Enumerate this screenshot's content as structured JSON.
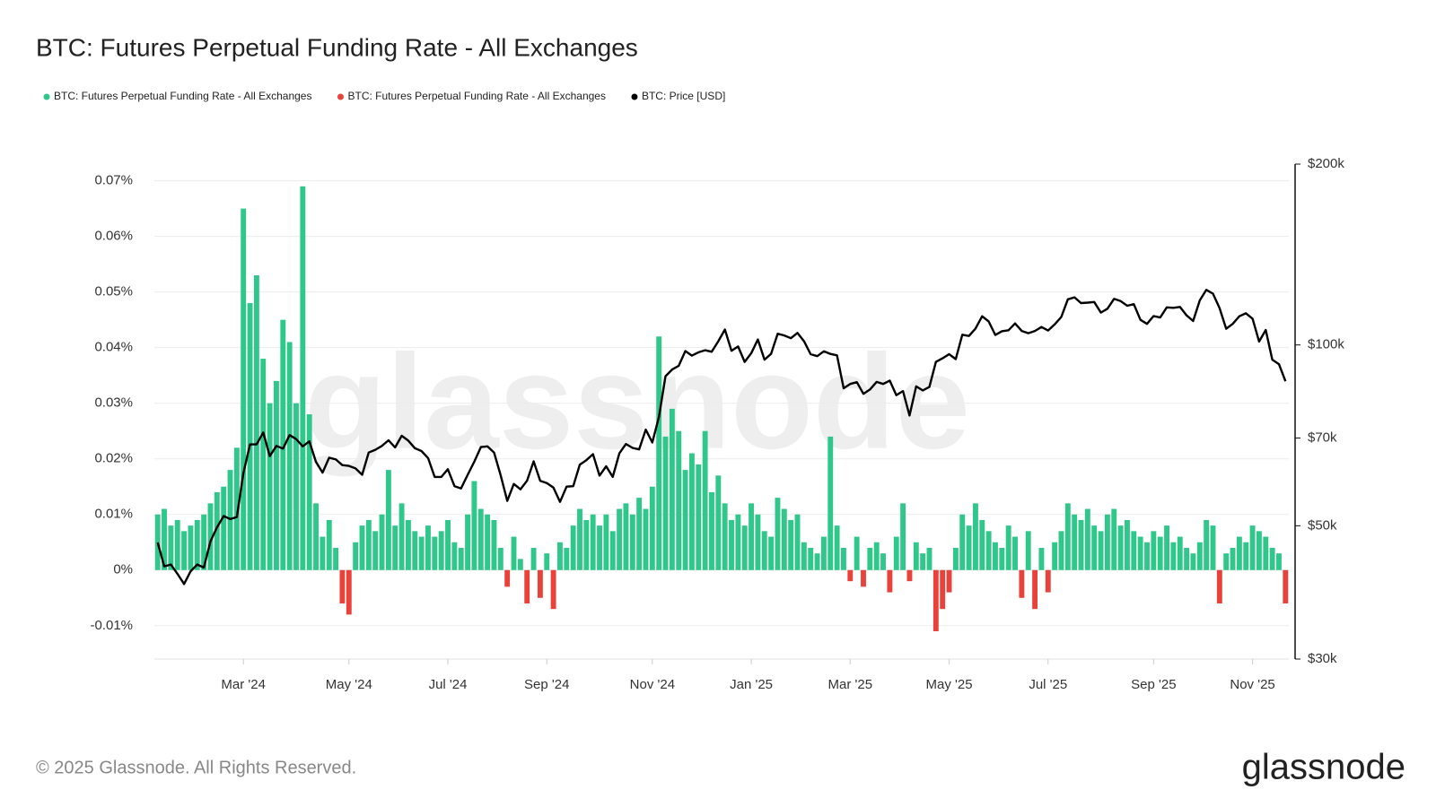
{
  "chart_data": {
    "type": "bar-line",
    "title": "BTC: Futures Perpetual Funding Rate - All Exchanges",
    "watermark": "glassnode",
    "footer": "© 2025 Glassnode. All Rights Reserved.",
    "logo": "glassnode",
    "grid": true,
    "legend": "top-left",
    "categories": [
      null,
      null,
      null,
      null,
      null,
      null,
      null,
      null,
      null,
      null,
      null,
      null,
      null,
      "Mar '24",
      null,
      null,
      null,
      null,
      null,
      null,
      null,
      null,
      null,
      null,
      null,
      null,
      null,
      null,
      null,
      "May '24",
      null,
      null,
      null,
      null,
      null,
      null,
      null,
      null,
      null,
      null,
      null,
      null,
      null,
      null,
      "Jul '24",
      null,
      null,
      null,
      null,
      null,
      null,
      null,
      null,
      null,
      null,
      null,
      null,
      null,
      null,
      "Sep '24",
      null,
      null,
      null,
      null,
      null,
      null,
      null,
      null,
      null,
      null,
      null,
      null,
      null,
      null,
      null,
      "Nov '24",
      null,
      null,
      null,
      null,
      null,
      null,
      null,
      null,
      null,
      null,
      null,
      null,
      null,
      null,
      "Jan '25",
      null,
      null,
      null,
      null,
      null,
      null,
      null,
      null,
      null,
      null,
      null,
      null,
      null,
      null,
      "Mar '25",
      null,
      null,
      null,
      null,
      null,
      null,
      null,
      null,
      null,
      null,
      null,
      null,
      null,
      null,
      "May '25",
      null,
      null,
      null,
      null,
      null,
      null,
      null,
      null,
      null,
      null,
      null,
      null,
      null,
      null,
      "Jul '25",
      null,
      null,
      null,
      null,
      null,
      null,
      null,
      null,
      null,
      null,
      null,
      null,
      null,
      null,
      null,
      "Sep '25",
      null,
      null,
      null,
      null,
      null,
      null,
      null,
      null,
      null,
      null,
      null,
      null,
      null,
      null,
      "Nov '25",
      null,
      null,
      null,
      null,
      null
    ],
    "ylim": [
      -0.016,
      0.073
    ],
    "yticks": [
      {
        "value": -0.01,
        "label": "-0.01%"
      },
      {
        "value": 0,
        "label": "0%"
      },
      {
        "value": 0.01,
        "label": "0.01%"
      },
      {
        "value": 0.02,
        "label": "0.02%"
      },
      {
        "value": 0.03,
        "label": "0.03%"
      },
      {
        "value": 0.04,
        "label": "0.04%"
      },
      {
        "value": 0.05,
        "label": "0.05%"
      },
      {
        "value": 0.06,
        "label": "0.06%"
      },
      {
        "value": 0.07,
        "label": "0.07%"
      }
    ],
    "y2lim": [
      30000,
      200000
    ],
    "y2scale": "log",
    "y2ticks": [
      {
        "value": 30000,
        "label": "$30k"
      },
      {
        "value": 50000,
        "label": "$50k"
      },
      {
        "value": 70000,
        "label": "$70k"
      },
      {
        "value": 100000,
        "label": "$100k"
      },
      {
        "value": 200000,
        "label": "$200k"
      }
    ],
    "series": [
      {
        "name": "BTC: Futures Perpetual Funding Rate - All Exchanges",
        "color": "#2fc78a",
        "type": "bar",
        "values": [
          0.01,
          0.011,
          0.008,
          0.009,
          0.007,
          0.008,
          0.009,
          0.01,
          0.012,
          0.014,
          0.015,
          0.018,
          0.022,
          0.065,
          0.048,
          0.053,
          0.038,
          0.03,
          0.034,
          0.045,
          0.041,
          0.03,
          0.069,
          0.028,
          0.012,
          0.006,
          0.009,
          0.004,
          null,
          null,
          0.005,
          0.008,
          0.009,
          0.007,
          0.01,
          0.018,
          0.008,
          0.012,
          0.009,
          0.007,
          0.006,
          0.008,
          0.006,
          0.007,
          0.009,
          0.005,
          0.004,
          0.01,
          0.016,
          0.011,
          0.01,
          0.009,
          0.004,
          null,
          0.006,
          0.002,
          null,
          0.004,
          null,
          0.003,
          null,
          0.005,
          0.004,
          0.008,
          0.011,
          0.009,
          0.01,
          0.008,
          0.01,
          0.007,
          0.011,
          0.012,
          0.01,
          0.013,
          0.011,
          0.015,
          0.042,
          0.024,
          0.029,
          0.025,
          0.018,
          0.021,
          0.019,
          0.025,
          0.014,
          0.017,
          0.012,
          0.009,
          0.01,
          0.008,
          0.012,
          0.01,
          0.007,
          0.006,
          0.013,
          0.011,
          0.009,
          0.01,
          0.005,
          0.004,
          0.003,
          0.006,
          0.024,
          0.008,
          0.004,
          null,
          0.006,
          null,
          0.004,
          0.005,
          0.003,
          null,
          0.006,
          0.012,
          null,
          0.005,
          0.003,
          0.004,
          null,
          null,
          null,
          0.004,
          0.01,
          0.008,
          0.012,
          0.009,
          0.007,
          0.005,
          0.004,
          0.008,
          0.006,
          null,
          0.007,
          null,
          0.004,
          null,
          0.005,
          0.007,
          0.012,
          0.01,
          0.009,
          0.011,
          0.008,
          0.007,
          0.01,
          0.011,
          0.008,
          0.009,
          0.007,
          0.006,
          0.005,
          0.007,
          0.006,
          0.008,
          0.005,
          0.006,
          0.004,
          0.003,
          0.005,
          0.009,
          0.008,
          null,
          0.003,
          0.004,
          0.006,
          0.005,
          0.008,
          0.007,
          0.006,
          0.004,
          0.003,
          null
        ]
      },
      {
        "name": "BTC: Futures Perpetual Funding Rate - All Exchanges",
        "color": "#e8423a",
        "type": "bar",
        "values": [
          null,
          null,
          null,
          null,
          null,
          null,
          null,
          null,
          null,
          null,
          null,
          null,
          null,
          null,
          null,
          null,
          null,
          null,
          null,
          null,
          null,
          null,
          null,
          null,
          null,
          null,
          null,
          null,
          -0.006,
          -0.008,
          null,
          null,
          null,
          null,
          null,
          null,
          null,
          null,
          null,
          null,
          null,
          null,
          null,
          null,
          null,
          null,
          null,
          null,
          null,
          null,
          null,
          null,
          null,
          -0.003,
          null,
          null,
          -0.006,
          null,
          -0.005,
          null,
          -0.007,
          null,
          null,
          null,
          null,
          null,
          null,
          null,
          null,
          null,
          null,
          null,
          null,
          null,
          null,
          null,
          null,
          null,
          null,
          null,
          null,
          null,
          null,
          null,
          null,
          null,
          null,
          null,
          null,
          null,
          null,
          null,
          null,
          null,
          null,
          null,
          null,
          null,
          null,
          null,
          null,
          null,
          null,
          null,
          null,
          -0.002,
          null,
          -0.003,
          null,
          null,
          null,
          -0.004,
          null,
          null,
          -0.002,
          null,
          null,
          null,
          -0.011,
          -0.007,
          -0.004,
          null,
          null,
          null,
          null,
          null,
          null,
          null,
          null,
          null,
          null,
          -0.005,
          null,
          -0.007,
          null,
          -0.004,
          null,
          null,
          null,
          null,
          null,
          null,
          null,
          null,
          null,
          null,
          null,
          null,
          null,
          null,
          null,
          null,
          null,
          null,
          null,
          null,
          null,
          null,
          null,
          null,
          null,
          -0.006,
          null,
          null,
          null,
          null,
          null,
          null,
          null,
          null,
          null,
          -0.006
        ]
      },
      {
        "name": "BTC: Price [USD]",
        "color": "#000000",
        "type": "line",
        "axis": "y2",
        "values": [
          46900,
          42800,
          43100,
          41600,
          40000,
          42000,
          43100,
          42600,
          47100,
          49700,
          51900,
          51300,
          51700,
          61200,
          68300,
          68300,
          71500,
          65300,
          67900,
          67200,
          70800,
          69700,
          67800,
          69100,
          63900,
          61300,
          64900,
          64500,
          63100,
          62900,
          62300,
          60800,
          66200,
          66900,
          67900,
          69400,
          67500,
          70600,
          69300,
          67300,
          66600,
          64800,
          60300,
          60300,
          62100,
          58200,
          57700,
          60800,
          63900,
          67600,
          67800,
          66200,
          60700,
          55000,
          58700,
          57500,
          59400,
          64000,
          59400,
          58900,
          57900,
          54800,
          58100,
          58200,
          63200,
          64300,
          65800,
          60600,
          62800,
          60300,
          66000,
          68400,
          67400,
          67000,
          72300,
          68800,
          75900,
          88700,
          91000,
          92300,
          97700,
          96000,
          97200,
          98000,
          97400,
          101400,
          106100,
          97800,
          99400,
          93700,
          96900,
          102100,
          94500,
          96600,
          104400,
          103700,
          102600,
          104700,
          101400,
          96500,
          95800,
          97600,
          96600,
          96100,
          84700,
          86100,
          86700,
          82900,
          84300,
          86800,
          86100,
          87200,
          82500,
          83800,
          76300,
          85300,
          84000,
          85100,
          93700,
          95000,
          96500,
          94700,
          104000,
          103500,
          106500,
          111600,
          109400,
          103900,
          105400,
          105800,
          108600,
          105500,
          104600,
          105500,
          107100,
          105700,
          108200,
          111300,
          119100,
          120000,
          117400,
          117600,
          117900,
          113200,
          114900,
          119300,
          118300,
          116200,
          116900,
          110100,
          108400,
          111700,
          111100,
          115500,
          115300,
          115700,
          112000,
          109600,
          118600,
          123500,
          121700,
          115200,
          106400,
          108400,
          111600,
          112900,
          110600,
          101300,
          105900,
          94500,
          92900,
          87000
        ]
      }
    ]
  }
}
